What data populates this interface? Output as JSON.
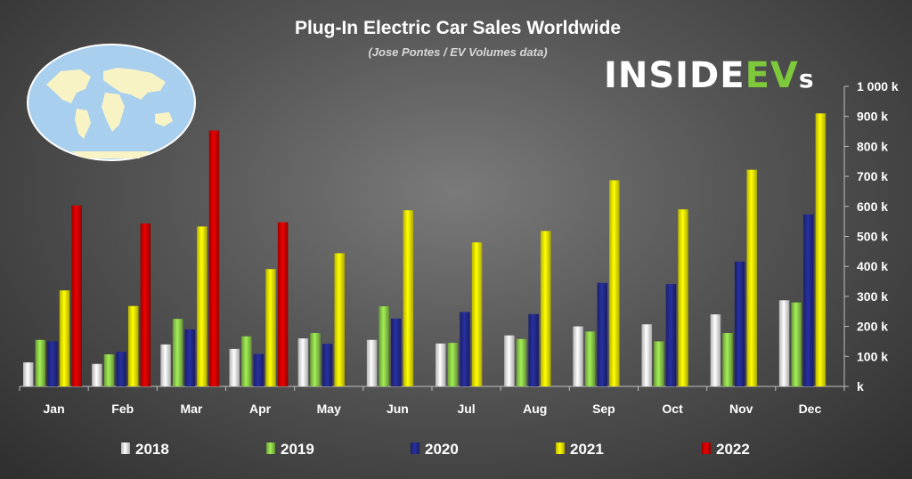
{
  "brand": {
    "part1": "INSIDE",
    "part2": "EV",
    "part3": "s"
  },
  "colors": {
    "2018": "#f2f2f2",
    "2019": "#8ed04a",
    "2020": "#232a8c",
    "2021": "#f5f000",
    "2022": "#d00000",
    "brand_green": "#7ec83c"
  },
  "chart_data": {
    "type": "bar",
    "title": "Plug-In Electric Car Sales Worldwide",
    "subtitle": "(Jose Pontes / EV Volumes data)",
    "categories": [
      "Jan",
      "Feb",
      "Mar",
      "Apr",
      "May",
      "Jun",
      "Jul",
      "Aug",
      "Sep",
      "Oct",
      "Nov",
      "Dec"
    ],
    "series": [
      {
        "name": "2018",
        "values": [
          80,
          75,
          140,
          125,
          160,
          155,
          143,
          170,
          200,
          207,
          240,
          287
        ]
      },
      {
        "name": "2019",
        "values": [
          155,
          107,
          225,
          167,
          178,
          267,
          145,
          158,
          183,
          150,
          178,
          280
        ]
      },
      {
        "name": "2020",
        "values": [
          150,
          115,
          190,
          108,
          142,
          226,
          248,
          241,
          345,
          341,
          416,
          573
        ]
      },
      {
        "name": "2021",
        "values": [
          320,
          268,
          533,
          391,
          444,
          587,
          480,
          518,
          687,
          590,
          722,
          910
        ]
      },
      {
        "name": "2022",
        "values": [
          603,
          543,
          853,
          547,
          null,
          null,
          null,
          null,
          null,
          null,
          null,
          null
        ]
      }
    ],
    "yaxis_position": "right",
    "ylim": [
      0,
      1000
    ],
    "yticks": [
      0,
      100,
      200,
      300,
      400,
      500,
      600,
      700,
      800,
      900,
      1000
    ],
    "ytick_labels": [
      "k",
      "100 k",
      "200 k",
      "300 k",
      "400 k",
      "500 k",
      "600 k",
      "700 k",
      "800 k",
      "900 k",
      "1 000 k"
    ],
    "grid": false,
    "legend": "bottom"
  }
}
